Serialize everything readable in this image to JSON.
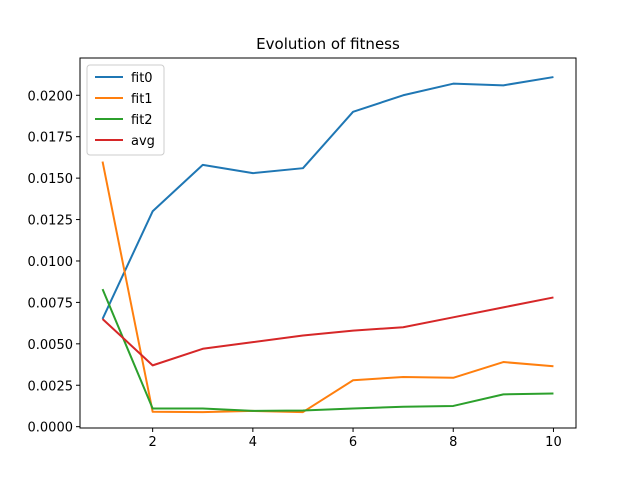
{
  "chart_data": {
    "type": "line",
    "title": "Evolution of fitness",
    "xlabel": "",
    "ylabel": "",
    "xlim": [
      0.55,
      10.45
    ],
    "ylim": [
      -8e-05,
      0.02225
    ],
    "xticks": [
      2,
      4,
      6,
      8,
      10
    ],
    "yticks": [
      0.0,
      0.0025,
      0.005,
      0.0075,
      0.01,
      0.0125,
      0.015,
      0.0175,
      0.02
    ],
    "ytick_labels": [
      "0.0000",
      "0.0025",
      "0.0050",
      "0.0075",
      "0.0100",
      "0.0125",
      "0.0150",
      "0.0175",
      "0.0200"
    ],
    "x": [
      1,
      2,
      3,
      4,
      5,
      6,
      7,
      8,
      9,
      10
    ],
    "series": [
      {
        "name": "fit0",
        "color": "#1f77b4",
        "values": [
          0.0065,
          0.013,
          0.0158,
          0.0153,
          0.0156,
          0.019,
          0.02,
          0.0207,
          0.0206,
          0.0211
        ]
      },
      {
        "name": "fit1",
        "color": "#ff7f0e",
        "values": [
          0.016,
          0.0009,
          0.00088,
          0.00095,
          0.00088,
          0.0028,
          0.003,
          0.00295,
          0.0039,
          0.00365
        ]
      },
      {
        "name": "fit2",
        "color": "#2ca02c",
        "values": [
          0.0083,
          0.0011,
          0.0011,
          0.00095,
          0.00098,
          0.0011,
          0.0012,
          0.00125,
          0.00195,
          0.002
        ]
      },
      {
        "name": "avg",
        "color": "#d62728",
        "values": [
          0.0065,
          0.0037,
          0.0047,
          0.0051,
          0.0055,
          0.0058,
          0.006,
          0.0066,
          0.0072,
          0.0078
        ]
      }
    ],
    "grid": false,
    "legend": "top-left"
  }
}
